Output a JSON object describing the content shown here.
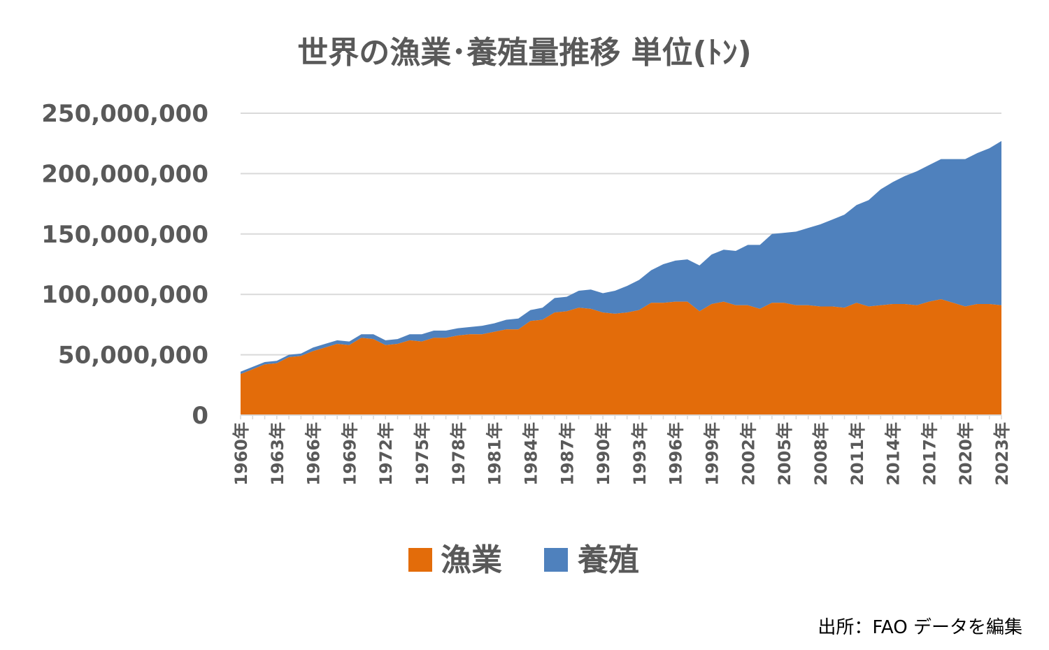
{
  "chart_data": {
    "type": "area",
    "stacked": true,
    "title": "世界の漁業･養殖量推移 単位(ﾄﾝ)",
    "source": "出所：FAO データを編集",
    "ylim": [
      0,
      250000000
    ],
    "yticks": [
      0,
      50000000,
      100000000,
      150000000,
      200000000,
      250000000
    ],
    "ytick_labels": [
      "0",
      "50,000,000",
      "100,000,000",
      "150,000,000",
      "200,000,000",
      "250,000,000"
    ],
    "grid": true,
    "legend_position": "bottom",
    "x": [
      "1960年",
      "1961年",
      "1962年",
      "1963年",
      "1964年",
      "1965年",
      "1966年",
      "1967年",
      "1968年",
      "1969年",
      "1970年",
      "1971年",
      "1972年",
      "1973年",
      "1974年",
      "1975年",
      "1976年",
      "1977年",
      "1978年",
      "1979年",
      "1980年",
      "1981年",
      "1982年",
      "1983年",
      "1984年",
      "1985年",
      "1986年",
      "1987年",
      "1988年",
      "1989年",
      "1990年",
      "1991年",
      "1992年",
      "1993年",
      "1994年",
      "1995年",
      "1996年",
      "1997年",
      "1998年",
      "1999年",
      "2000年",
      "2001年",
      "2002年",
      "2003年",
      "2004年",
      "2005年",
      "2006年",
      "2007年",
      "2008年",
      "2009年",
      "2010年",
      "2011年",
      "2012年",
      "2013年",
      "2014年",
      "2015年",
      "2016年",
      "2017年",
      "2018年",
      "2019年",
      "2020年",
      "2021年",
      "2022年",
      "2023年"
    ],
    "xtick_labels": [
      "1960年",
      "1963年",
      "1966年",
      "1969年",
      "1972年",
      "1975年",
      "1978年",
      "1981年",
      "1984年",
      "1987年",
      "1990年",
      "1993年",
      "1996年",
      "1999年",
      "2002年",
      "2005年",
      "2008年",
      "2011年",
      "2014年",
      "2017年",
      "2020年",
      "2023年"
    ],
    "series": [
      {
        "name": "漁業",
        "color": "#e36c0a",
        "values": [
          34000000,
          38000000,
          42000000,
          43000000,
          48000000,
          49000000,
          53000000,
          56000000,
          59000000,
          58000000,
          64000000,
          63000000,
          58000000,
          59000000,
          62000000,
          61000000,
          64000000,
          64000000,
          66000000,
          67000000,
          67000000,
          69000000,
          71000000,
          71000000,
          78000000,
          79000000,
          85000000,
          86000000,
          89000000,
          88000000,
          85000000,
          84000000,
          85000000,
          87000000,
          93000000,
          93000000,
          94000000,
          94000000,
          86000000,
          92000000,
          94000000,
          91000000,
          91000000,
          88000000,
          93000000,
          93000000,
          91000000,
          91000000,
          90000000,
          90000000,
          89000000,
          93000000,
          90000000,
          91000000,
          92000000,
          92000000,
          91000000,
          94000000,
          96000000,
          93000000,
          90000000,
          92000000,
          92000000,
          91000000
        ]
      },
      {
        "name": "養殖",
        "color": "#4f81bd",
        "values": [
          2000000,
          2000000,
          2000000,
          2000000,
          2000000,
          2000000,
          3000000,
          3000000,
          3000000,
          3000000,
          3000000,
          4000000,
          4000000,
          4000000,
          5000000,
          6000000,
          6000000,
          6000000,
          6000000,
          6000000,
          7000000,
          7000000,
          8000000,
          9000000,
          9000000,
          10000000,
          12000000,
          12000000,
          14000000,
          16000000,
          16000000,
          19000000,
          22000000,
          25000000,
          27000000,
          32000000,
          34000000,
          35000000,
          38000000,
          41000000,
          43000000,
          45000000,
          50000000,
          53000000,
          57000000,
          58000000,
          61000000,
          64000000,
          68000000,
          72000000,
          77000000,
          81000000,
          88000000,
          96000000,
          101000000,
          106000000,
          111000000,
          113000000,
          116000000,
          119000000,
          122000000,
          125000000,
          129000000,
          136000000
        ]
      }
    ]
  }
}
